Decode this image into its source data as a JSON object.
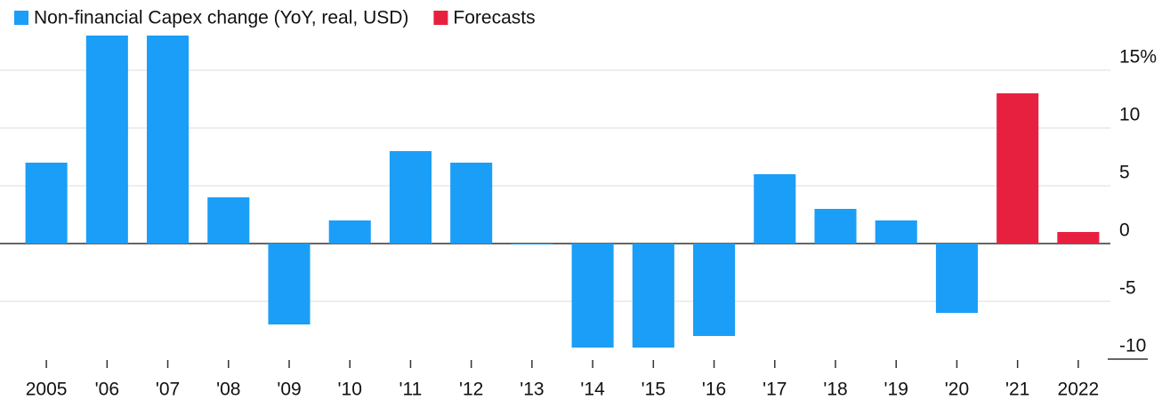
{
  "chart_data": {
    "type": "bar",
    "categories": [
      "2005",
      "'06",
      "'07",
      "'08",
      "'09",
      "'10",
      "'11",
      "'12",
      "'13",
      "'14",
      "'15",
      "'16",
      "'17",
      "'18",
      "'19",
      "'20",
      "'21",
      "2022"
    ],
    "series": [
      {
        "name": "Non-financial Capex change (YoY, real, USD)",
        "color": "#1b9ef7",
        "values": [
          7,
          18,
          18,
          4,
          -7,
          2,
          8,
          7,
          0,
          -9,
          -9,
          -8,
          6,
          3,
          2,
          -6,
          null,
          null
        ]
      },
      {
        "name": "Forecasts",
        "color": "#e8203f",
        "values": [
          null,
          null,
          null,
          null,
          null,
          null,
          null,
          null,
          null,
          null,
          null,
          null,
          null,
          null,
          null,
          null,
          13,
          1
        ]
      }
    ],
    "ylim": [
      -10,
      18
    ],
    "yticks": [
      {
        "value": 15,
        "label": "15%"
      },
      10,
      5,
      0,
      -5,
      -10
    ],
    "grid": true
  }
}
